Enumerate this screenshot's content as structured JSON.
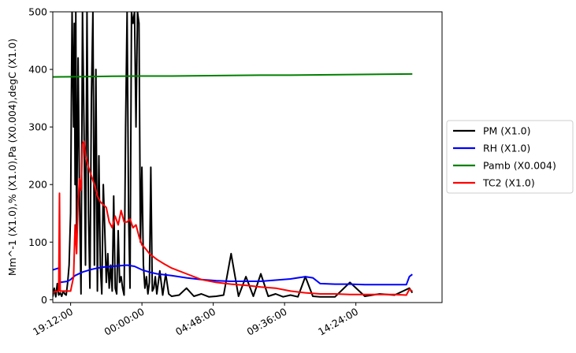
{
  "chart_data": {
    "type": "line",
    "title": "",
    "xlabel": "",
    "ylabel": "Mm^-1 (X1.0),% (X1.0),Pa (X0.004),degC (X1.0)",
    "xlim": [
      -6.0,
      20.2
    ],
    "ylim": [
      -5,
      500
    ],
    "x_unit": "hours relative to 00:00:00",
    "x_ticks": [
      {
        "value": -4.8,
        "label": "19:12:00"
      },
      {
        "value": 0.0,
        "label": "00:00:00"
      },
      {
        "value": 4.8,
        "label": "04:48:00"
      },
      {
        "value": 9.6,
        "label": "09:36:00"
      },
      {
        "value": 14.4,
        "label": "14:24:00"
      }
    ],
    "y_ticks": [
      0,
      100,
      200,
      300,
      400,
      500
    ],
    "grid": false,
    "legend_position": "outside-right",
    "series": [
      {
        "name": "PM (X1.0)",
        "color": "#000000",
        "x": [
          -6.2,
          -6.1,
          -6.0,
          -5.9,
          -5.8,
          -5.7,
          -5.6,
          -5.5,
          -5.4,
          -5.3,
          -5.2,
          -5.1,
          -5.0,
          -4.9,
          -4.8,
          -4.75,
          -4.7,
          -4.6,
          -4.55,
          -4.5,
          -4.45,
          -4.4,
          -4.3,
          -4.2,
          -4.1,
          -4.0,
          -3.9,
          -3.8,
          -3.7,
          -3.6,
          -3.5,
          -3.4,
          -3.3,
          -3.2,
          -3.1,
          -3.0,
          -2.9,
          -2.8,
          -2.7,
          -2.6,
          -2.5,
          -2.4,
          -2.3,
          -2.2,
          -2.1,
          -2.0,
          -1.9,
          -1.8,
          -1.7,
          -1.6,
          -1.5,
          -1.4,
          -1.3,
          -1.2,
          -1.1,
          -1.0,
          -0.9,
          -0.8,
          -0.7,
          -0.6,
          -0.5,
          -0.4,
          -0.3,
          -0.2,
          -0.1,
          0.0,
          0.1,
          0.2,
          0.3,
          0.4,
          0.5,
          0.6,
          0.7,
          0.8,
          0.9,
          1.0,
          1.2,
          1.4,
          1.6,
          1.8,
          2.0,
          2.5,
          3.0,
          3.5,
          4.0,
          4.5,
          5.0,
          5.5,
          6.0,
          6.5,
          7.0,
          7.5,
          8.0,
          8.5,
          9.0,
          9.5,
          10.0,
          10.5,
          11.0,
          11.5,
          12.0,
          13.0,
          14.0,
          15.0,
          16.0,
          17.0,
          18.0,
          18.2
        ],
        "values": [
          5,
          8,
          6,
          20,
          5,
          28,
          8,
          12,
          6,
          15,
          10,
          8,
          30,
          60,
          150,
          350,
          500,
          300,
          480,
          200,
          500,
          100,
          420,
          180,
          10,
          500,
          300,
          60,
          500,
          150,
          20,
          350,
          500,
          60,
          400,
          15,
          250,
          60,
          10,
          200,
          120,
          30,
          80,
          20,
          60,
          15,
          180,
          20,
          10,
          120,
          30,
          40,
          20,
          8,
          300,
          500,
          150,
          20,
          500,
          480,
          500,
          300,
          500,
          480,
          100,
          230,
          60,
          20,
          40,
          10,
          30,
          230,
          15,
          20,
          40,
          10,
          50,
          8,
          45,
          10,
          6,
          8,
          20,
          6,
          10,
          5,
          6,
          8,
          80,
          6,
          40,
          6,
          45,
          6,
          10,
          5,
          8,
          5,
          40,
          6,
          5,
          5,
          30,
          6,
          10,
          8,
          20,
          12
        ]
      },
      {
        "name": "RH (X1.0)",
        "color": "#0000ff",
        "x": [
          -6.2,
          -5.6,
          -5.5,
          -5.0,
          -4.8,
          -4.5,
          -4.0,
          -3.5,
          -3.0,
          -2.5,
          -2.0,
          -1.5,
          -1.0,
          -0.5,
          0.0,
          0.5,
          1.0,
          2.0,
          3.0,
          4.0,
          5.0,
          6.0,
          7.0,
          8.0,
          9.0,
          10.0,
          11.0,
          11.5,
          12.0,
          13.0,
          14.0,
          15.0,
          16.0,
          17.0,
          17.8,
          18.0,
          18.2
        ],
        "values": [
          50,
          55,
          30,
          32,
          35,
          42,
          48,
          52,
          55,
          57,
          58,
          59,
          60,
          58,
          52,
          48,
          45,
          42,
          38,
          35,
          33,
          32,
          32,
          32,
          34,
          36,
          40,
          38,
          28,
          27,
          27,
          26,
          26,
          26,
          26,
          40,
          44
        ]
      },
      {
        "name": "Pamb (X0.004)",
        "color": "#008000",
        "x": [
          -6.2,
          -4.0,
          -2.0,
          0.0,
          2.0,
          4.0,
          6.0,
          8.0,
          10.0,
          12.0,
          14.0,
          16.0,
          18.2
        ],
        "values": [
          387,
          387.5,
          388,
          388.5,
          388.5,
          389,
          389.5,
          390,
          390,
          390.5,
          391,
          391.5,
          392
        ]
      },
      {
        "name": "TC2 (X1.0)",
        "color": "#ff0000",
        "x": [
          -6.2,
          -5.6,
          -5.55,
          -5.5,
          -5.0,
          -4.8,
          -4.6,
          -4.5,
          -4.4,
          -4.3,
          -4.2,
          -4.1,
          -4.0,
          -3.9,
          -3.8,
          -3.6,
          -3.4,
          -3.2,
          -3.0,
          -2.8,
          -2.6,
          -2.4,
          -2.2,
          -2.0,
          -1.8,
          -1.6,
          -1.4,
          -1.2,
          -1.0,
          -0.8,
          -0.6,
          -0.4,
          -0.2,
          0.0,
          0.2,
          0.5,
          1.0,
          1.5,
          2.0,
          3.0,
          4.0,
          5.0,
          6.0,
          7.0,
          8.0,
          9.0,
          10.0,
          11.0,
          12.0,
          13.0,
          14.0,
          15.0,
          16.0,
          17.0,
          17.8,
          18.0,
          18.2
        ],
        "values": [
          12,
          15,
          185,
          15,
          15,
          15,
          40,
          130,
          80,
          170,
          210,
          190,
          270,
          275,
          250,
          230,
          215,
          200,
          180,
          170,
          165,
          160,
          135,
          125,
          145,
          130,
          155,
          135,
          135,
          140,
          125,
          130,
          110,
          95,
          90,
          80,
          70,
          62,
          55,
          45,
          35,
          30,
          27,
          25,
          22,
          20,
          15,
          12,
          10,
          10,
          9,
          9,
          9,
          9,
          8,
          18,
          15
        ]
      }
    ]
  }
}
